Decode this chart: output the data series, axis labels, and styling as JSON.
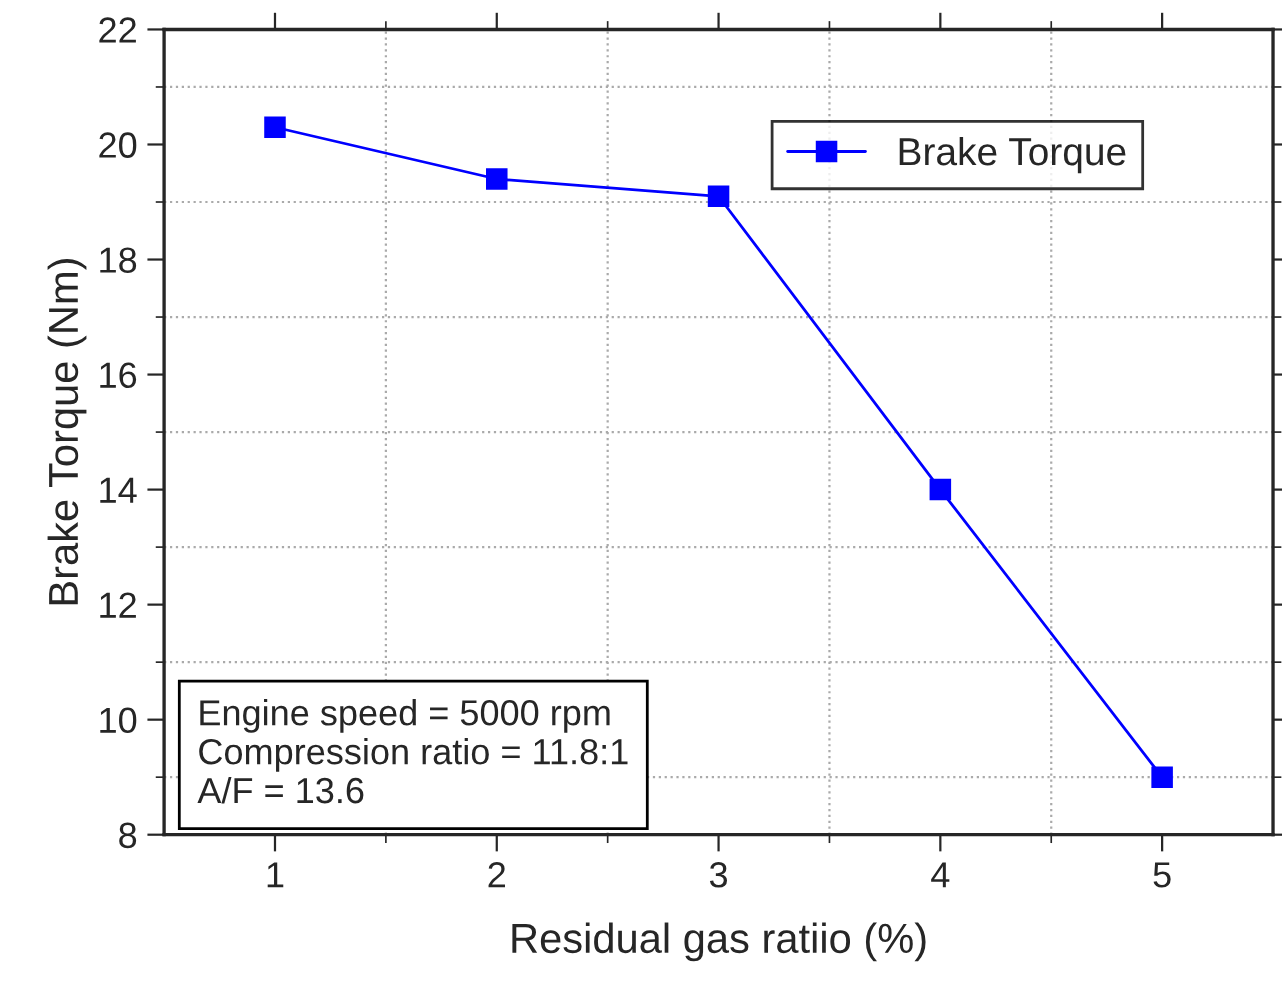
{
  "chart_data": {
    "type": "line",
    "xlabel": "Residual gas ratiio (%)",
    "ylabel": "Brake Torque (Nm)",
    "x": [
      1,
      2,
      3,
      4,
      5
    ],
    "series": [
      {
        "name": "Brake Torque",
        "color": "#0000ff",
        "values": [
          20.3,
          19.4,
          19.1,
          14.0,
          9.0
        ]
      }
    ],
    "xlim": [
      0.5,
      5.5
    ],
    "ylim": [
      8,
      22
    ],
    "xticks": [
      1,
      {
        "value": 1.5,
        "label": null
      },
      2,
      {
        "value": 2.5,
        "label": null
      },
      3,
      {
        "value": 3.5,
        "label": null
      },
      4,
      {
        "value": 4.5,
        "label": null
      },
      5
    ],
    "yticks": [
      8,
      {
        "value": 9,
        "label": null
      },
      10,
      {
        "value": 11,
        "label": null
      },
      12,
      {
        "value": 13,
        "label": null
      },
      14,
      {
        "value": 15,
        "label": null
      },
      16,
      {
        "value": 17,
        "label": null
      },
      18,
      {
        "value": 19,
        "label": null
      },
      20,
      {
        "value": 21,
        "label": null
      },
      22
    ],
    "grid": true,
    "legend": "top right",
    "marker": "square",
    "line_style": "solid",
    "annotations": [
      "Engine speed = 5000 rpm\nCompression ratio = 11.8:1\nA/F = 13.6"
    ]
  }
}
